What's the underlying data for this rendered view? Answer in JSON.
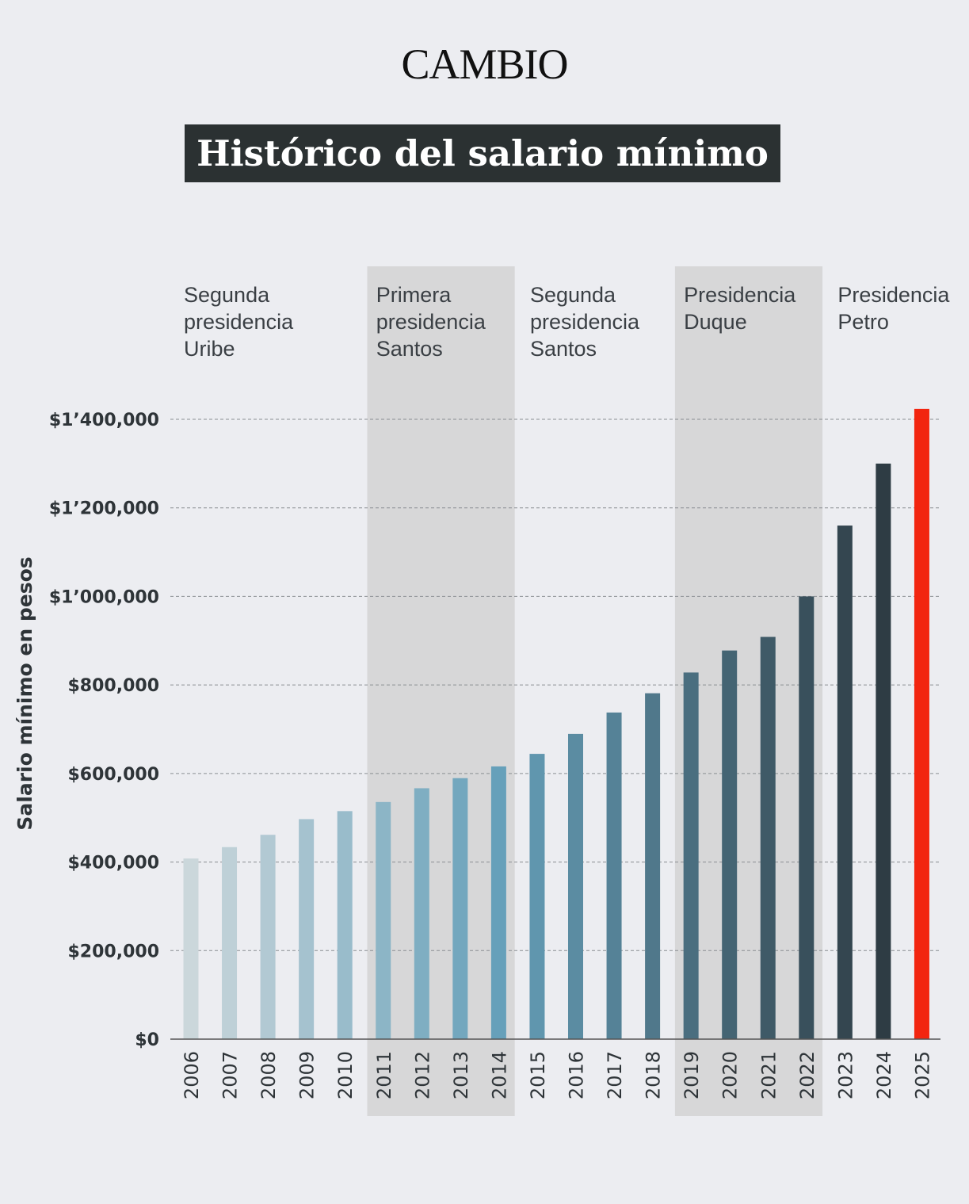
{
  "brand": {
    "logo": "CAMBIO"
  },
  "chart_data": {
    "type": "bar",
    "title": "Histórico del salario mínimo",
    "ylabel": "Salario mínimo en pesos",
    "xlabel": "",
    "categories": [
      "2006",
      "2007",
      "2008",
      "2009",
      "2010",
      "2011",
      "2012",
      "2013",
      "2014",
      "2015",
      "2016",
      "2017",
      "2018",
      "2019",
      "2020",
      "2021",
      "2022",
      "2023",
      "2024",
      "2025"
    ],
    "values": [
      408000,
      433700,
      461500,
      496900,
      515000,
      535600,
      566700,
      589500,
      616000,
      644350,
      689455,
      737717,
      781242,
      828116,
      877803,
      908526,
      1000000,
      1160000,
      1300000,
      1423500
    ],
    "ylim": [
      0,
      1400000
    ],
    "yticks": [
      {
        "value": 0,
        "label": "$0"
      },
      {
        "value": 200000,
        "label": "$200,000"
      },
      {
        "value": 400000,
        "label": "$400,000"
      },
      {
        "value": 600000,
        "label": "$600,000"
      },
      {
        "value": 800000,
        "label": "$800,000"
      },
      {
        "value": 1000000,
        "label": "$1’000,000"
      },
      {
        "value": 1200000,
        "label": "$1’200,000"
      },
      {
        "value": 1400000,
        "label": "$1’400,000"
      }
    ],
    "grid": "horizontal dashed",
    "periods": [
      {
        "label": [
          "Segunda",
          "presidencia",
          "Uribe"
        ],
        "from": "2006",
        "to": "2010",
        "shaded": false
      },
      {
        "label": [
          "Primera",
          "presidencia",
          "Santos"
        ],
        "from": "2011",
        "to": "2014",
        "shaded": true
      },
      {
        "label": [
          "Segunda",
          "presidencia",
          "Santos"
        ],
        "from": "2015",
        "to": "2018",
        "shaded": false
      },
      {
        "label": [
          "Presidencia",
          "Duque"
        ],
        "from": "2019",
        "to": "2022",
        "shaded": true
      },
      {
        "label": [
          "Presidencia",
          "Petro"
        ],
        "from": "2023",
        "to": "2025",
        "shaded": false
      }
    ],
    "colors": {
      "gradient_start": "#cbd7db",
      "gradient_mid": "#66a0ba",
      "gradient_end": "#2e3c44",
      "highlight": "#f2250f",
      "shade": "#d7d7d8",
      "title_bg": "#2b3132"
    }
  }
}
